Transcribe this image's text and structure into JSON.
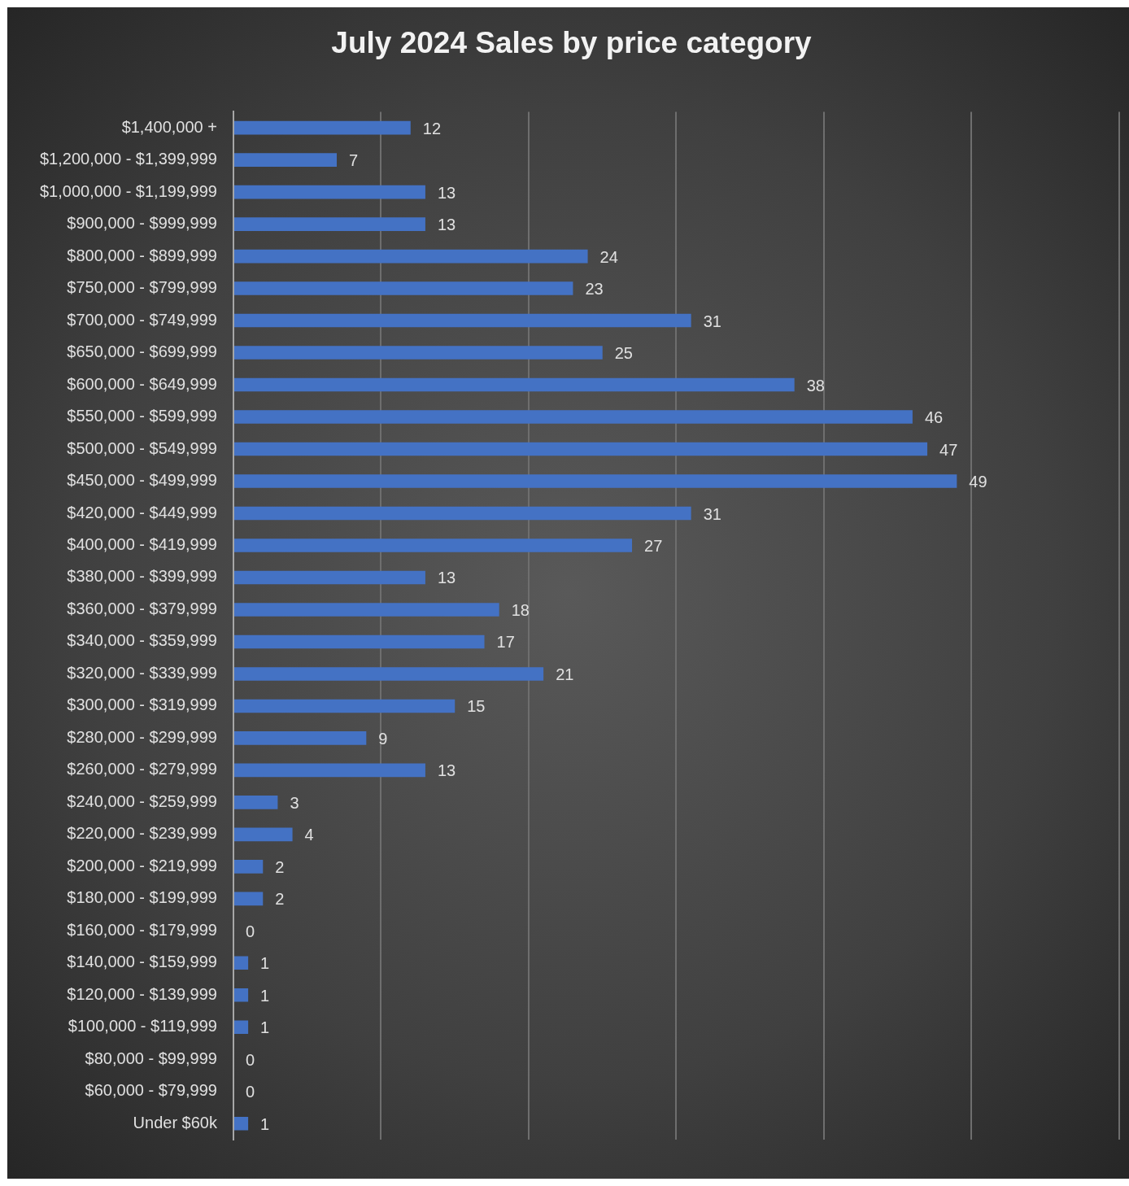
{
  "chart_data": {
    "type": "bar",
    "orientation": "horizontal",
    "title": "July 2024 Sales by price category",
    "categories": [
      "$1,400,000 +",
      "$1,200,000 - $1,399,999",
      "$1,000,000 - $1,199,999",
      "$900,000 - $999,999",
      "$800,000 - $899,999",
      "$750,000 - $799,999",
      "$700,000 - $749,999",
      "$650,000 - $699,999",
      "$600,000 - $649,999",
      "$550,000 - $599,999",
      "$500,000 - $549,999",
      "$450,000 - $499,999",
      "$420,000 - $449,999",
      "$400,000 - $419,999",
      "$380,000 - $399,999",
      "$360,000 - $379,999",
      "$340,000 - $359,999",
      "$320,000 - $339,999",
      "$300,000 - $319,999",
      "$280,000 - $299,999",
      "$260,000 - $279,999",
      "$240,000 - $259,999",
      "$220,000 - $239,999",
      "$200,000 - $219,999",
      "$180,000 - $199,999",
      "$160,000 - $179,999",
      "$140,000 - $159,999",
      "$120,000 - $139,999",
      "$100,000 - $119,999",
      "$80,000 - $99,999",
      "$60,000 - $79,999",
      "Under $60k"
    ],
    "values": [
      12,
      7,
      13,
      13,
      24,
      23,
      31,
      25,
      38,
      46,
      47,
      49,
      31,
      27,
      13,
      18,
      17,
      21,
      15,
      9,
      13,
      3,
      4,
      2,
      2,
      0,
      1,
      1,
      1,
      0,
      0,
      1
    ],
    "color": "#4472c4",
    "xlim": [
      0,
      60
    ],
    "xticks": [
      {
        "value": 0,
        "label": null
      },
      {
        "value": 10,
        "label": null
      },
      {
        "value": 20,
        "label": null
      },
      {
        "value": 30,
        "label": null
      },
      {
        "value": 40,
        "label": null
      },
      {
        "value": 50,
        "label": null
      },
      {
        "value": 60,
        "label": null
      }
    ],
    "grid": "x",
    "tick_labels": "y",
    "data_labels": true,
    "legend": false
  }
}
